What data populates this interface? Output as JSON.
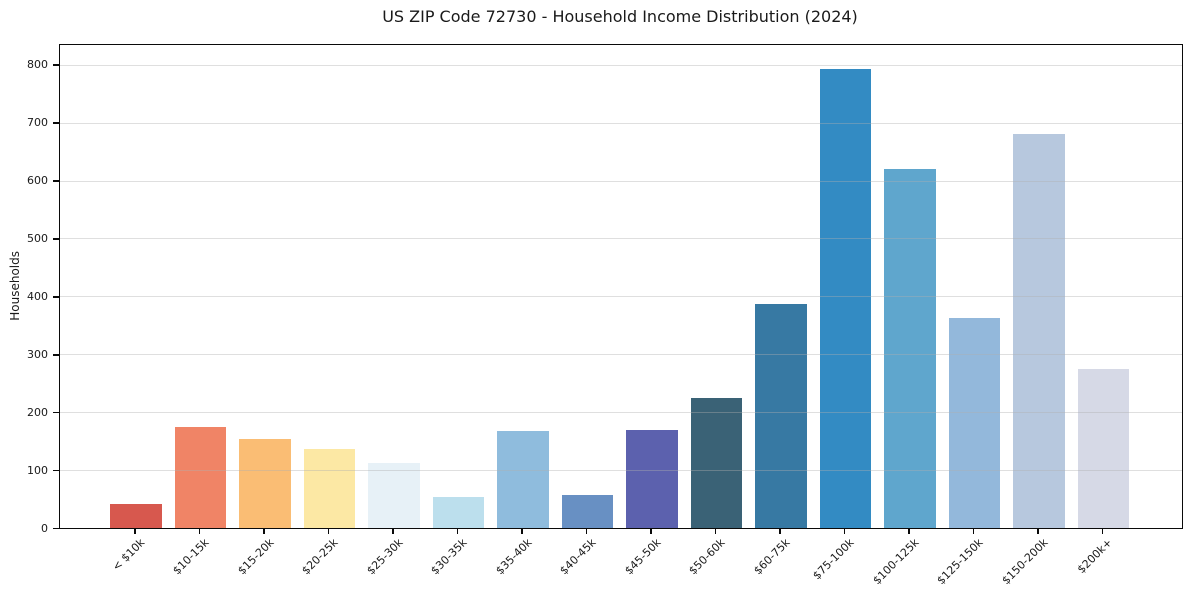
{
  "window": {
    "background_color": "#ffffff"
  },
  "chart_data": {
    "type": "bar",
    "title": "US ZIP Code 72730 - Household Income Distribution (2024)",
    "xlabel": "",
    "ylabel": "Households",
    "categories": [
      "< $10k",
      "$10-15k",
      "$15-20k",
      "$20-25k",
      "$25-30k",
      "$30-35k",
      "$35-40k",
      "$40-45k",
      "$45-50k",
      "$50-60k",
      "$60-75k",
      "$75-100k",
      "$100-125k",
      "$125-150k",
      "$150-200k",
      "$200k+"
    ],
    "values": [
      42,
      174,
      154,
      137,
      112,
      54,
      167,
      57,
      170,
      224,
      386,
      793,
      620,
      362,
      681,
      275
    ],
    "bar_colors": [
      "#d7584e",
      "#f08466",
      "#fabd74",
      "#fce8a4",
      "#e7f1f7",
      "#bcdfed",
      "#8fbcdd",
      "#6890c3",
      "#5c61ae",
      "#3a6276",
      "#3779a3",
      "#338bc3",
      "#5fa6cd",
      "#93b8db",
      "#b7c8de",
      "#d6d9e6"
    ],
    "yticks": [
      0,
      100,
      200,
      300,
      400,
      500,
      600,
      700,
      800
    ],
    "ylim": [
      0,
      834
    ],
    "grid": true,
    "grid_color": "rgba(175,175,175,0.4)",
    "legend_position": "none",
    "text_color": "#1a1a1a",
    "spine_color": "#0a0a0a",
    "xtick_rotation_deg": 45
  }
}
